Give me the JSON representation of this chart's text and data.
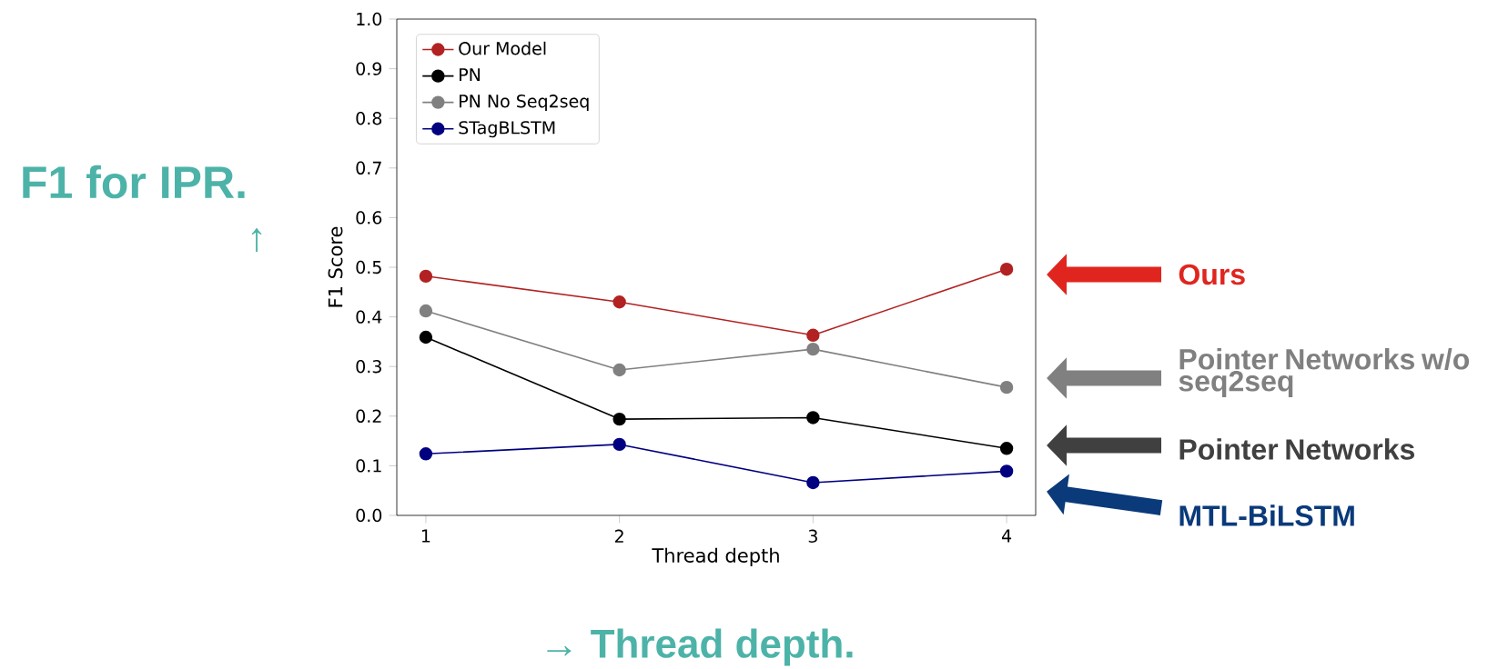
{
  "chart_data": {
    "type": "line",
    "xlabel": "Thread depth",
    "ylabel": "F1 Score",
    "x": [
      1,
      2,
      3,
      4
    ],
    "xlim": [
      0.85,
      4.15
    ],
    "xticks": [
      1,
      2,
      3,
      4
    ],
    "ylim": [
      0,
      1
    ],
    "yticks": [
      {
        "value": 0,
        "label": "0.0"
      },
      0.1,
      0.2,
      0.3,
      0.4,
      0.5,
      0.6,
      0.7,
      0.8,
      0.9,
      {
        "value": 1,
        "label": "1.0"
      }
    ],
    "marker": "circle",
    "line_style": "solid",
    "legend": "top left",
    "grid": false,
    "series": [
      {
        "name": "Our Model",
        "color": "#b22222",
        "values": [
          0.482,
          0.43,
          0.363,
          0.496
        ]
      },
      {
        "name": "PN",
        "color": "#000000",
        "values": [
          0.359,
          0.194,
          0.197,
          0.135
        ]
      },
      {
        "name": "PN No Seq2seq",
        "color": "#808080",
        "values": [
          0.412,
          0.293,
          0.335,
          0.258
        ]
      },
      {
        "name": "STagBLSTM",
        "color": "#000080",
        "values": [
          0.124,
          0.143,
          0.066,
          0.089
        ]
      }
    ],
    "annotations": [
      "F1 for IPR.",
      "↑",
      "→ Thread depth.",
      "Ours",
      "Pointer Networks w/o seq2seq",
      "Pointer Networks",
      "MTL-BiLSTM"
    ]
  }
}
